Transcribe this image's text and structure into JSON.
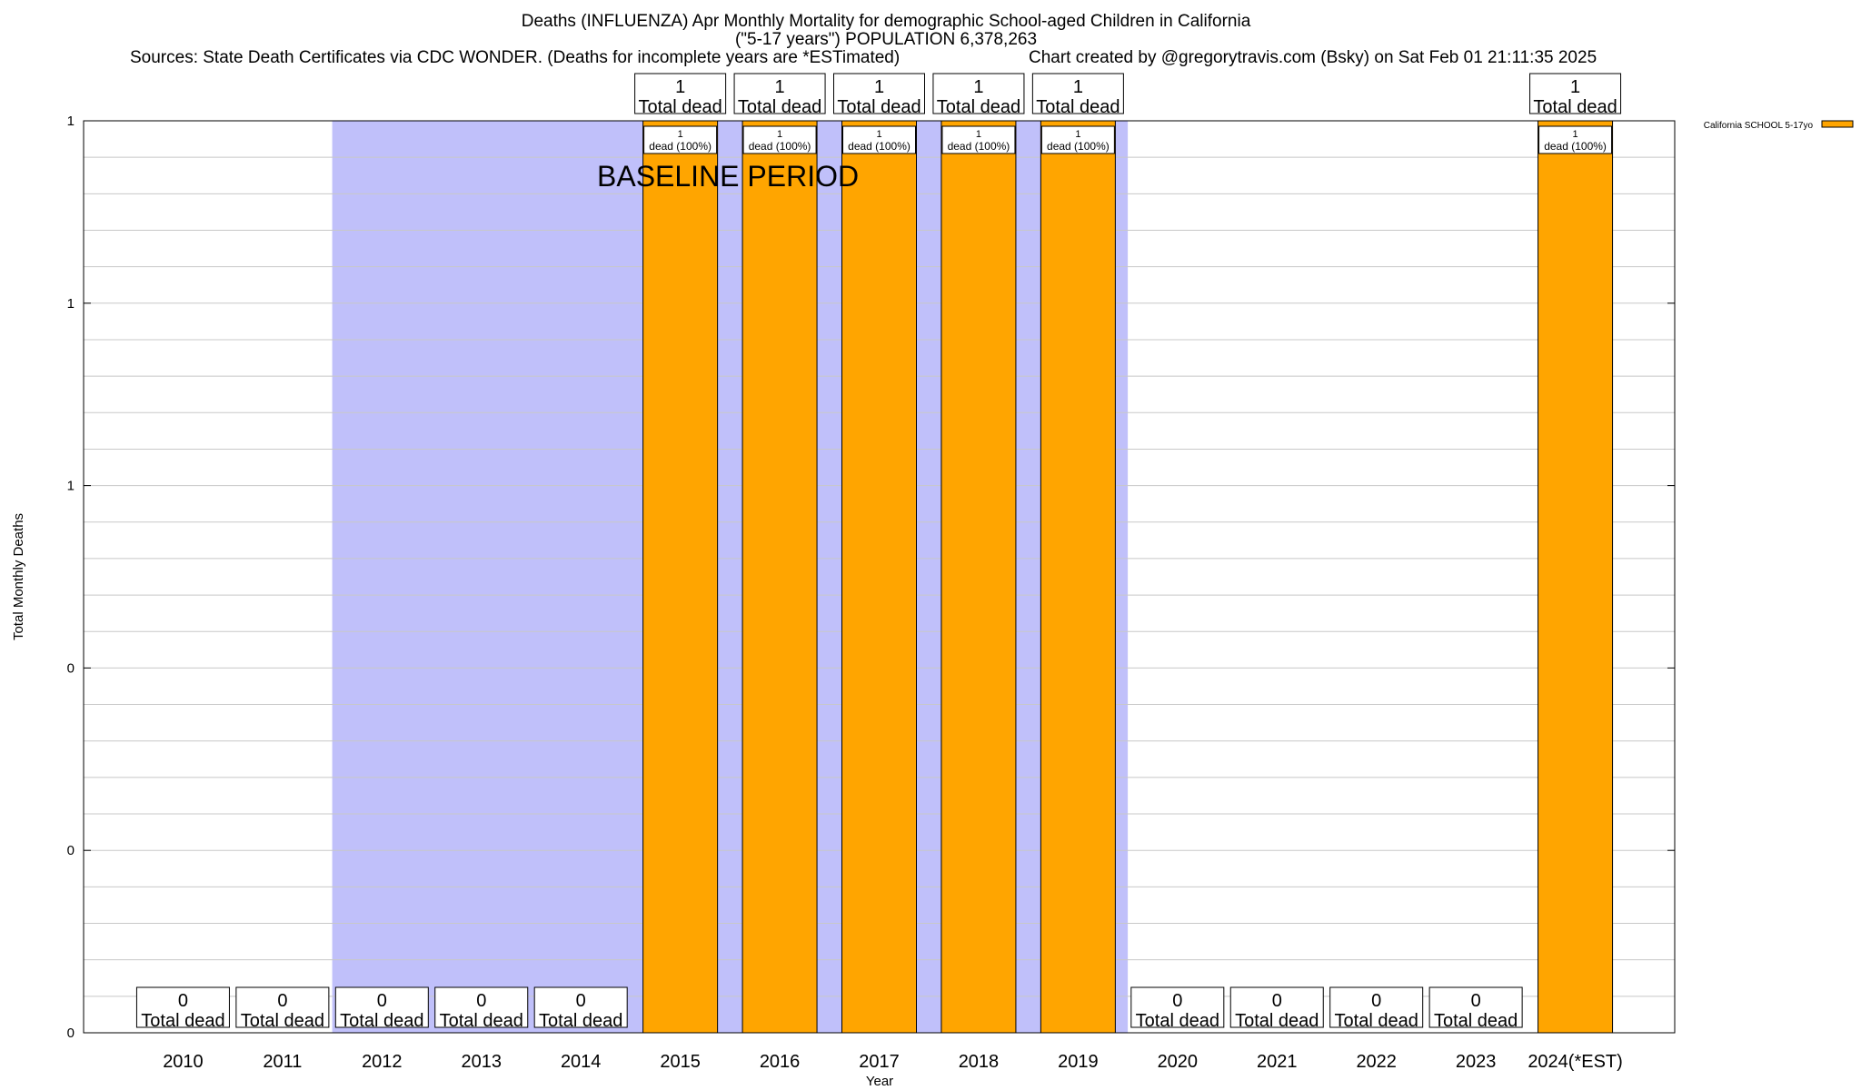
{
  "header": {
    "title_line1": "Deaths (INFLUENZA) Apr Monthly Mortality for demographic School-aged Children in California",
    "title_line2": "(\"5-17 years\") POPULATION 6,378,263",
    "sources": "Sources: State Death Certificates via CDC WONDER. (Deaths for incomplete years are *ESTimated)",
    "credit": "Chart created by @gregorytravis.com (Bsky) on Sat Feb 01 21:11:35 2025"
  },
  "colors": {
    "bar": "#ffa500",
    "baseline_band": "#c0c0fa",
    "grid": "#c8c8c8",
    "axis": "#000000"
  },
  "chart_data": {
    "type": "bar",
    "title": "Deaths (INFLUENZA) Apr Monthly Mortality for demographic School-aged Children in California",
    "subtitle": "(\"5-17 years\") POPULATION 6,378,263",
    "xlabel": "Year",
    "ylabel": "Total Monthly Deaths",
    "categories": [
      "2010",
      "2011",
      "2012",
      "2013",
      "2014",
      "2015",
      "2016",
      "2017",
      "2018",
      "2019",
      "2020",
      "2021",
      "2022",
      "2023",
      "2024(*EST)"
    ],
    "series": [
      {
        "name": "California SCHOOL 5-17yo",
        "values": [
          0,
          0,
          0,
          0,
          0,
          1,
          1,
          1,
          1,
          1,
          0,
          0,
          0,
          0,
          1
        ],
        "segment_labels": [
          "",
          "",
          "",
          "",
          "",
          "1 dead (100%)",
          "1 dead (100%)",
          "1 dead (100%)",
          "1 dead (100%)",
          "1 dead (100%)",
          "",
          "",
          "",
          "",
          "1 dead (100%)"
        ]
      }
    ],
    "total_labels": [
      "0 Total dead",
      "0 Total dead",
      "0 Total dead",
      "0 Total dead",
      "0 Total dead",
      "1 Total dead",
      "1 Total dead",
      "1 Total dead",
      "1 Total dead",
      "1 Total dead",
      "0 Total dead",
      "0 Total dead",
      "0 Total dead",
      "0 Total dead",
      "1 Total dead"
    ],
    "total_value_text": [
      "0",
      "0",
      "0",
      "0",
      "0",
      "1",
      "1",
      "1",
      "1",
      "1",
      "0",
      "0",
      "0",
      "0",
      "1"
    ],
    "total_suffix": "Total dead",
    "segment_value_text": "1",
    "segment_suffix": "dead (100%)",
    "ylim": [
      0,
      1
    ],
    "yticks": [
      0,
      0.2,
      0.4,
      0.6,
      0.8,
      1
    ],
    "ytick_labels": [
      "0",
      "0",
      "0",
      "1",
      "1",
      "1"
    ],
    "minor_gridlines_per_major": 5,
    "grid": true,
    "baseline_period": {
      "label": "BASELINE PERIOD",
      "from": "2012",
      "to": "2019"
    },
    "legend": {
      "position": "top-right",
      "entries": [
        "California SCHOOL 5-17yo"
      ]
    }
  }
}
